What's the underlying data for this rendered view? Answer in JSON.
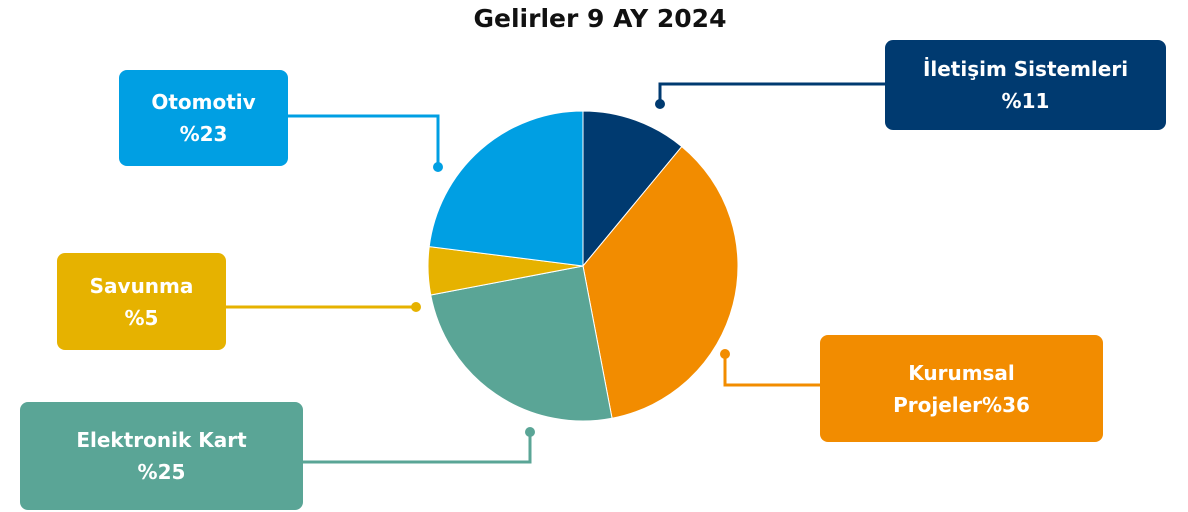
{
  "chart_data": {
    "type": "pie",
    "title": "Gelirler 9 AY 2024",
    "categories": [
      "İletişim Sistemleri",
      "Kurumsal Projeler",
      "Elektronik Kart",
      "Savunma",
      "Otomotiv"
    ],
    "values": [
      11,
      36,
      25,
      5,
      23
    ],
    "value_labels": [
      "%11",
      "%36",
      "%25",
      "%5",
      "%23"
    ],
    "colors": [
      "#003a70",
      "#f28c00",
      "#5aa596",
      "#e6b200",
      "#009fe3"
    ]
  }
}
